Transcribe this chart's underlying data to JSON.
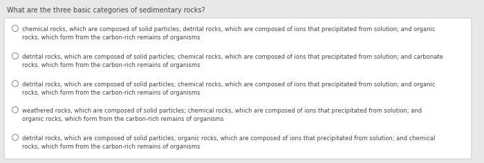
{
  "title": "What are the three basic categories of sedimentary rocks?",
  "options": [
    "chemical rocks, which are composed of solid particles; detrital rocks, which are composed of ions that precipitated from solution; and organic\nrocks, which form from the carbon-rich remains of organisms",
    "detrital rocks, which are composed of solid particles; chemical rocks, which are composed of ions that precipitated from solution; and carbonate\nrocks, which form from the carbon-rich remains of organisms",
    "detrital rocks, which are composed of solid particles; chemical rocks, which are composed of ions that precipitated from solution; and organic\nrocks, which form from the carbon-rich remains of organisms",
    "weathered rocks, which are composed of solid particles; chemical rocks, which are composed of ions that precipitated from solution; and\norganic rocks, which form from the carbon-rich remains of organisms",
    "detrital rocks, which are composed of solid particles; organic rocks, which are composed of ions that precipitated from solution; and chemical\nrocks, which form from the carbon-rich remains of organisms"
  ],
  "background_color": "#e8e8e8",
  "box_color": "#ffffff",
  "box_edge_color": "#c8c8c8",
  "title_fontsize": 7.0,
  "option_fontsize": 6.0,
  "title_color": "#444444",
  "option_color": "#444444",
  "circle_edge_color": "#888888",
  "circle_facecolor": "none"
}
